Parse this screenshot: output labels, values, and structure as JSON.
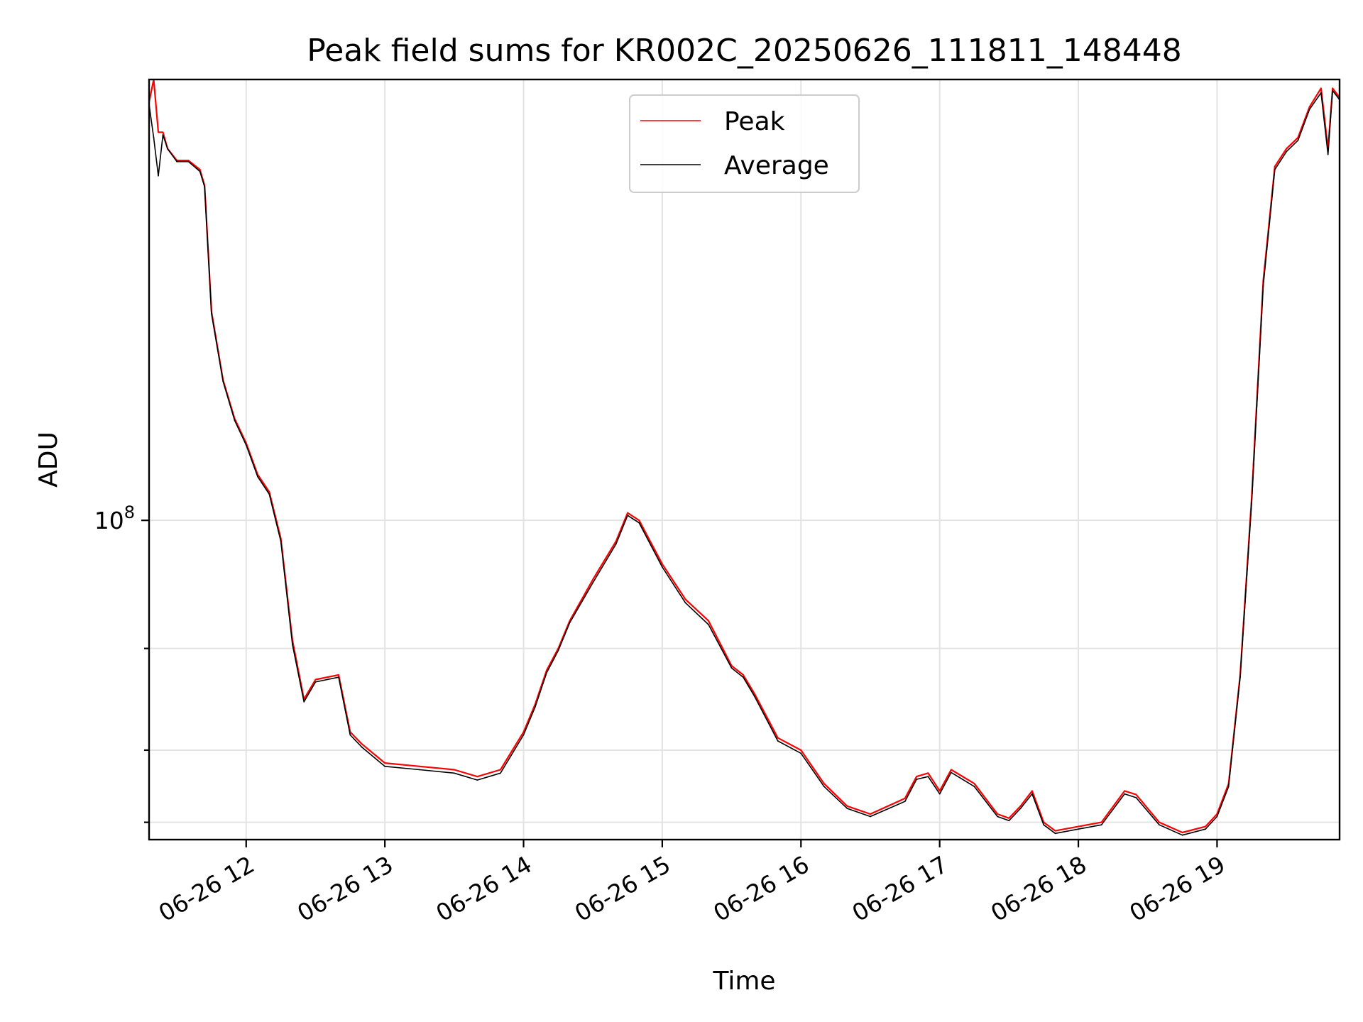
{
  "chart_data": {
    "type": "line",
    "title": "Peak field sums for KR002C_20250626_111811_148448",
    "xlabel": "Time",
    "ylabel": "ADU",
    "yscale": "log",
    "grid": true,
    "legend_position": "top-center",
    "xlim": [
      "2025-06-26 11:18",
      "2025-06-26 19:53"
    ],
    "ylim": [
      28000000,
      580000000
    ],
    "x_ticks": [
      "06-26 12",
      "06-26 13",
      "06-26 14",
      "06-26 15",
      "06-26 16",
      "06-26 17",
      "06-26 18",
      "06-26 19"
    ],
    "x_tick_times": [
      "2025-06-26 12:00",
      "2025-06-26 13:00",
      "2025-06-26 14:00",
      "2025-06-26 15:00",
      "2025-06-26 16:00",
      "2025-06-26 17:00",
      "2025-06-26 18:00",
      "2025-06-26 19:00"
    ],
    "y_tick_major": [
      {
        "value": 100000000,
        "base": "10",
        "exp": "8"
      }
    ],
    "y_tick_minor": [
      30000000,
      40000000,
      60000000
    ],
    "series": [
      {
        "name": "Peak",
        "color": "#ff0000",
        "x": [
          "2025-06-26 11:18",
          "2025-06-26 11:20",
          "2025-06-26 11:22",
          "2025-06-26 11:24",
          "2025-06-26 11:26",
          "2025-06-26 11:30",
          "2025-06-26 11:35",
          "2025-06-26 11:40",
          "2025-06-26 11:42",
          "2025-06-26 11:45",
          "2025-06-26 11:50",
          "2025-06-26 11:55",
          "2025-06-26 12:00",
          "2025-06-26 12:05",
          "2025-06-26 12:10",
          "2025-06-26 12:15",
          "2025-06-26 12:20",
          "2025-06-26 12:25",
          "2025-06-26 12:30",
          "2025-06-26 12:40",
          "2025-06-26 12:45",
          "2025-06-26 12:50",
          "2025-06-26 13:00",
          "2025-06-26 13:15",
          "2025-06-26 13:30",
          "2025-06-26 13:40",
          "2025-06-26 13:50",
          "2025-06-26 14:00",
          "2025-06-26 14:05",
          "2025-06-26 14:10",
          "2025-06-26 14:15",
          "2025-06-26 14:20",
          "2025-06-26 14:30",
          "2025-06-26 14:40",
          "2025-06-26 14:45",
          "2025-06-26 14:50",
          "2025-06-26 15:00",
          "2025-06-26 15:10",
          "2025-06-26 15:20",
          "2025-06-26 15:30",
          "2025-06-26 15:35",
          "2025-06-26 15:40",
          "2025-06-26 15:50",
          "2025-06-26 16:00",
          "2025-06-26 16:10",
          "2025-06-26 16:20",
          "2025-06-26 16:30",
          "2025-06-26 16:45",
          "2025-06-26 16:50",
          "2025-06-26 16:55",
          "2025-06-26 17:00",
          "2025-06-26 17:05",
          "2025-06-26 17:15",
          "2025-06-26 17:25",
          "2025-06-26 17:30",
          "2025-06-26 17:35",
          "2025-06-26 17:40",
          "2025-06-26 17:45",
          "2025-06-26 17:50",
          "2025-06-26 18:00",
          "2025-06-26 18:10",
          "2025-06-26 18:20",
          "2025-06-26 18:25",
          "2025-06-26 18:35",
          "2025-06-26 18:45",
          "2025-06-26 18:55",
          "2025-06-26 19:00",
          "2025-06-26 19:05",
          "2025-06-26 19:10",
          "2025-06-26 19:15",
          "2025-06-26 19:20",
          "2025-06-26 19:25",
          "2025-06-26 19:30",
          "2025-06-26 19:35",
          "2025-06-26 19:40",
          "2025-06-26 19:45",
          "2025-06-26 19:48",
          "2025-06-26 19:50",
          "2025-06-26 19:53"
        ],
        "values": [
          530000000,
          580000000,
          470000000,
          470000000,
          440000000,
          420000000,
          420000000,
          405000000,
          380000000,
          230000000,
          175000000,
          150000000,
          136000000,
          120000000,
          112000000,
          93000000,
          62000000,
          49000000,
          53000000,
          54000000,
          43000000,
          41000000,
          38000000,
          37500000,
          37000000,
          36000000,
          37000000,
          43000000,
          48000000,
          55000000,
          60000000,
          67000000,
          79000000,
          92000000,
          103000000,
          100000000,
          84000000,
          73000000,
          67000000,
          56000000,
          54000000,
          50000000,
          42000000,
          40000000,
          35000000,
          32000000,
          31000000,
          33000000,
          36000000,
          36500000,
          34000000,
          37000000,
          35000000,
          31000000,
          30500000,
          32000000,
          34000000,
          30000000,
          29000000,
          29500000,
          30000000,
          34000000,
          33500000,
          30000000,
          28800000,
          29500000,
          31000000,
          35000000,
          54000000,
          110000000,
          260000000,
          410000000,
          440000000,
          460000000,
          520000000,
          560000000,
          440000000,
          560000000,
          540000000
        ]
      },
      {
        "name": "Average",
        "color": "#000000",
        "x": [
          "2025-06-26 11:18",
          "2025-06-26 11:20",
          "2025-06-26 11:22",
          "2025-06-26 11:24",
          "2025-06-26 11:26",
          "2025-06-26 11:30",
          "2025-06-26 11:35",
          "2025-06-26 11:40",
          "2025-06-26 11:42",
          "2025-06-26 11:45",
          "2025-06-26 11:50",
          "2025-06-26 11:55",
          "2025-06-26 12:00",
          "2025-06-26 12:05",
          "2025-06-26 12:10",
          "2025-06-26 12:15",
          "2025-06-26 12:20",
          "2025-06-26 12:25",
          "2025-06-26 12:30",
          "2025-06-26 12:40",
          "2025-06-26 12:45",
          "2025-06-26 12:50",
          "2025-06-26 13:00",
          "2025-06-26 13:15",
          "2025-06-26 13:30",
          "2025-06-26 13:40",
          "2025-06-26 13:50",
          "2025-06-26 14:00",
          "2025-06-26 14:05",
          "2025-06-26 14:10",
          "2025-06-26 14:15",
          "2025-06-26 14:20",
          "2025-06-26 14:30",
          "2025-06-26 14:40",
          "2025-06-26 14:45",
          "2025-06-26 14:50",
          "2025-06-26 15:00",
          "2025-06-26 15:10",
          "2025-06-26 15:20",
          "2025-06-26 15:30",
          "2025-06-26 15:35",
          "2025-06-26 15:40",
          "2025-06-26 15:50",
          "2025-06-26 16:00",
          "2025-06-26 16:10",
          "2025-06-26 16:20",
          "2025-06-26 16:30",
          "2025-06-26 16:45",
          "2025-06-26 16:50",
          "2025-06-26 16:55",
          "2025-06-26 17:00",
          "2025-06-26 17:05",
          "2025-06-26 17:15",
          "2025-06-26 17:25",
          "2025-06-26 17:30",
          "2025-06-26 17:35",
          "2025-06-26 17:40",
          "2025-06-26 17:45",
          "2025-06-26 17:50",
          "2025-06-26 18:00",
          "2025-06-26 18:10",
          "2025-06-26 18:20",
          "2025-06-26 18:25",
          "2025-06-26 18:35",
          "2025-06-26 18:45",
          "2025-06-26 18:55",
          "2025-06-26 19:00",
          "2025-06-26 19:05",
          "2025-06-26 19:10",
          "2025-06-26 19:15",
          "2025-06-26 19:20",
          "2025-06-26 19:25",
          "2025-06-26 19:30",
          "2025-06-26 19:35",
          "2025-06-26 19:40",
          "2025-06-26 19:45",
          "2025-06-26 19:48",
          "2025-06-26 19:50",
          "2025-06-26 19:53"
        ],
        "values": [
          525000000,
          460000000,
          395000000,
          465000000,
          440000000,
          418000000,
          418000000,
          402000000,
          378000000,
          228000000,
          174000000,
          149000000,
          135000000,
          119000000,
          111000000,
          92000000,
          61000000,
          48500000,
          52500000,
          53500000,
          42500000,
          40500000,
          37500000,
          37000000,
          36500000,
          35500000,
          36500000,
          42500000,
          47500000,
          54500000,
          59500000,
          66500000,
          78000000,
          91000000,
          102000000,
          99000000,
          83000000,
          72000000,
          66000000,
          55500000,
          53500000,
          49500000,
          41500000,
          39500000,
          34600000,
          31700000,
          30700000,
          32600000,
          35600000,
          36000000,
          33600000,
          36600000,
          34600000,
          30700000,
          30200000,
          31700000,
          33600000,
          29700000,
          28700000,
          29200000,
          29700000,
          33600000,
          33100000,
          29700000,
          28500000,
          29200000,
          30700000,
          34600000,
          53500000,
          108000000,
          255000000,
          405000000,
          435000000,
          455000000,
          515000000,
          550000000,
          430000000,
          555000000,
          535000000
        ]
      }
    ]
  }
}
